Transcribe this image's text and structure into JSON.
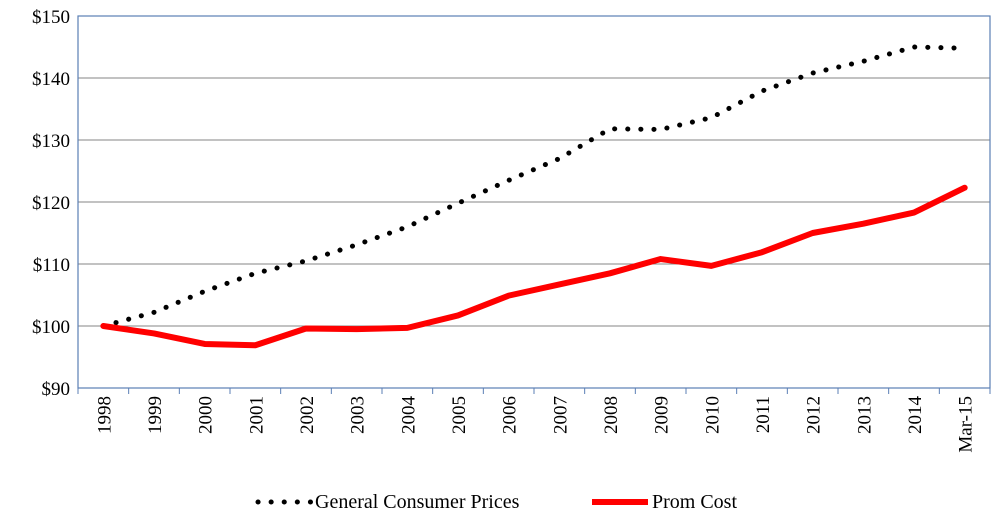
{
  "chart_data": {
    "type": "line",
    "title": "",
    "xlabel": "",
    "ylabel": "",
    "x": [
      "1998",
      "1999",
      "2000",
      "2001",
      "2002",
      "2003",
      "2004",
      "2005",
      "2006",
      "2007",
      "2008",
      "2009",
      "2010",
      "2011",
      "2012",
      "2013",
      "2014",
      "Mar-15"
    ],
    "yticks": [
      "$90",
      "$100",
      "$110",
      "$120",
      "$130",
      "$140",
      "$150"
    ],
    "ylim": [
      90,
      150
    ],
    "grid": true,
    "legend_position": "bottom",
    "series": [
      {
        "name": "General Consumer Prices",
        "style": "dotted",
        "color": "#000000",
        "values": [
          100,
          102.2,
          105.6,
          108.5,
          110.5,
          113.1,
          116.0,
          119.8,
          123.5,
          127.0,
          131.8,
          131.7,
          133.6,
          137.9,
          140.8,
          142.7,
          145.0,
          144.8
        ]
      },
      {
        "name": "Prom Cost",
        "style": "solid",
        "color": "#ff0000",
        "values": [
          100,
          98.8,
          97.1,
          96.9,
          99.6,
          99.5,
          99.7,
          101.7,
          104.9,
          106.7,
          108.5,
          110.8,
          109.7,
          111.9,
          115.0,
          116.5,
          118.3,
          122.3
        ]
      }
    ]
  }
}
